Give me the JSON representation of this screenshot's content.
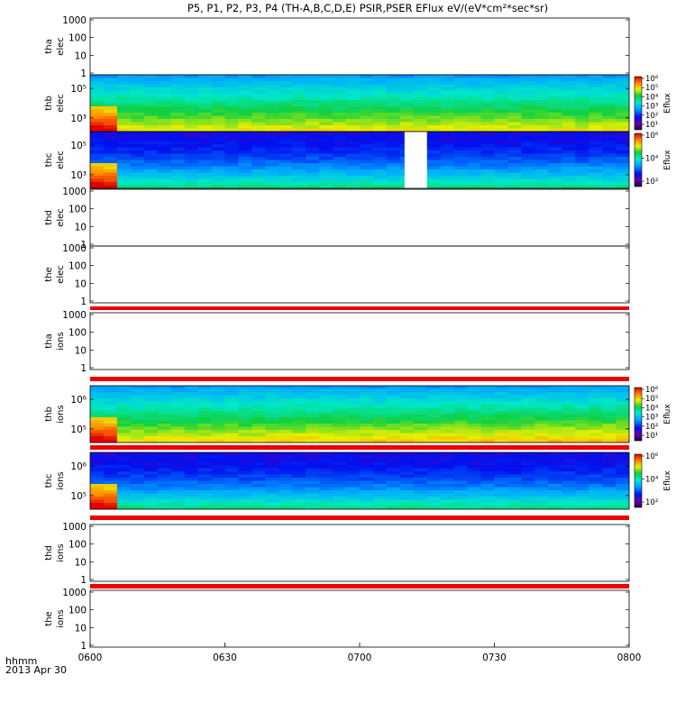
{
  "chart_data": {
    "type": "heatmap",
    "title": "P5, P1, P2, P3, P4 (TH-A,B,C,D,E) PSIR,PSER EFlux eV/(eV*cm²*sec*sr)",
    "colorbar_label": "Eflux",
    "x_axis": {
      "label_line1": "hhmm",
      "label_line2": "2013 Apr 30",
      "range": [
        "0600",
        "0800"
      ],
      "ticks": [
        "0600",
        "0630",
        "0700",
        "0730",
        "0800"
      ]
    },
    "panels": [
      {
        "label1": "tha",
        "label2": "elec",
        "kind": "empty",
        "yticks": [
          "1000",
          "100",
          "10",
          "1"
        ]
      },
      {
        "label1": "thb",
        "label2": "elec",
        "kind": "spectrogram",
        "yticks": [
          "10⁵",
          "10³"
        ],
        "colorbar_ticks": [
          "10⁶",
          "10⁵",
          "10⁴",
          "10³",
          "10²",
          "10¹"
        ],
        "gaps": []
      },
      {
        "label1": "thc",
        "label2": "elec",
        "kind": "spectrogram",
        "yticks": [
          "10⁵",
          "10³"
        ],
        "colorbar_ticks": [
          "10⁶",
          "10⁴",
          "10²"
        ],
        "gaps": [
          {
            "start": "0710",
            "end": "0715"
          }
        ]
      },
      {
        "label1": "thd",
        "label2": "elec",
        "kind": "empty",
        "yticks": [
          "1000",
          "100",
          "10",
          "1"
        ]
      },
      {
        "label1": "the",
        "label2": "elec",
        "kind": "empty",
        "yticks": [
          "1000",
          "100",
          "10",
          "1"
        ]
      },
      {
        "label1": "tha",
        "label2": "ions",
        "kind": "empty",
        "yticks": [
          "1000",
          "100",
          "10",
          "1"
        ]
      },
      {
        "label1": "thb",
        "label2": "ions",
        "kind": "spectrogram",
        "yticks": [
          "10⁶",
          "10⁵"
        ],
        "colorbar_ticks": [
          "10⁶",
          "10⁵",
          "10⁴",
          "10³",
          "10²",
          "10¹"
        ],
        "gaps": []
      },
      {
        "label1": "thc",
        "label2": "ions",
        "kind": "spectrogram",
        "yticks": [
          "10⁶",
          "10⁵"
        ],
        "colorbar_ticks": [
          "10⁶",
          "10⁴",
          "10²"
        ],
        "gaps": []
      },
      {
        "label1": "thd",
        "label2": "ions",
        "kind": "empty",
        "yticks": [
          "1000",
          "100",
          "10",
          "1"
        ]
      },
      {
        "label1": "the",
        "label2": "ions",
        "kind": "empty",
        "yticks": [
          "1000",
          "100",
          "10",
          "1"
        ]
      }
    ]
  }
}
